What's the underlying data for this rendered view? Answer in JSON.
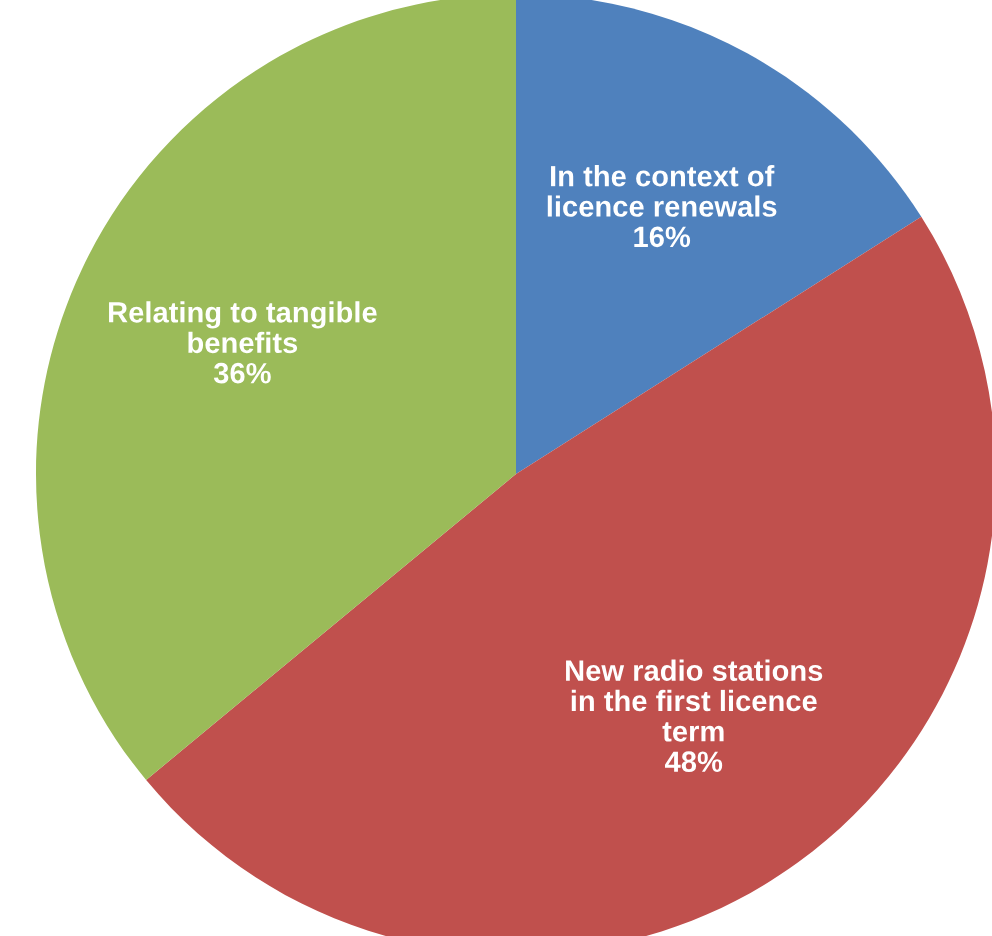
{
  "chart_data": {
    "type": "pie",
    "categories": [
      "In the context of\nlicence renewals",
      "New radio stations\nin the first licence\nterm",
      "Relating to tangible\nbenefits"
    ],
    "values": [
      16,
      48,
      36
    ],
    "value_labels": [
      "16%",
      "48%",
      "36%"
    ],
    "colors": [
      "#4f81bd",
      "#c0504d",
      "#9bbb59"
    ]
  }
}
